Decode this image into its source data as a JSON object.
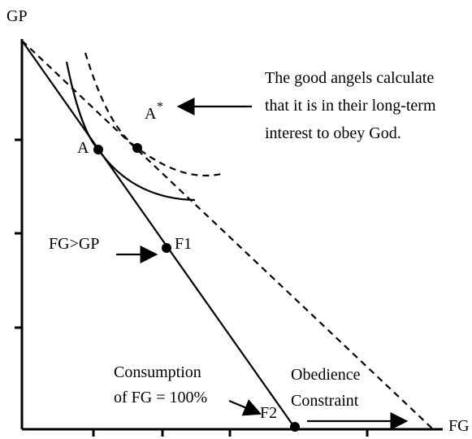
{
  "axes": {
    "y_label": "GP",
    "x_label": "FG"
  },
  "points": {
    "a": "A",
    "a_star": {
      "base": "A",
      "mark": "*"
    },
    "f1": "F1",
    "f2": "F2"
  },
  "annotations": {
    "angels": [
      "The good angels calculate",
      "that it is in their long-term",
      "interest to obey God."
    ],
    "fg_gt_gp": "FG>GP",
    "consumption": [
      "Consumption",
      "of FG = 100%"
    ],
    "obedience": [
      "Obedience",
      "Constraint"
    ]
  }
}
